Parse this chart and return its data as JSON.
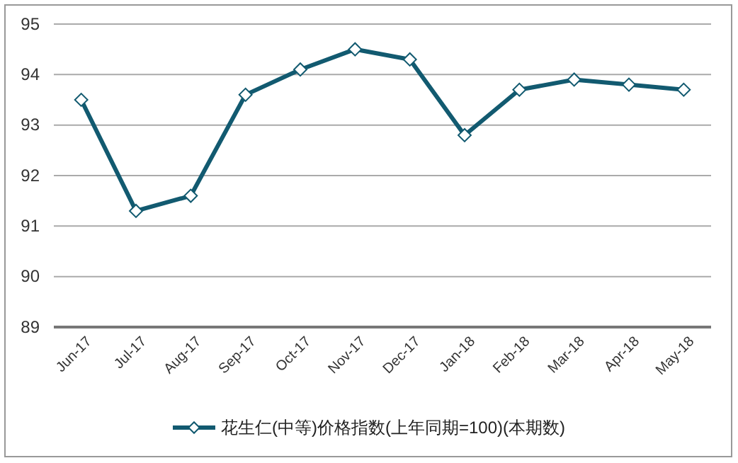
{
  "chart_data": {
    "type": "line",
    "categories": [
      "Jun-17",
      "Jul-17",
      "Aug-17",
      "Sep-17",
      "Oct-17",
      "Nov-17",
      "Dec-17",
      "Jan-18",
      "Feb-18",
      "Mar-18",
      "Apr-18",
      "May-18"
    ],
    "series": [
      {
        "name": "花生仁(中等)价格指数(上年同期=100)(本期数)",
        "color": "#125a70",
        "values": [
          93.5,
          91.3,
          91.6,
          93.6,
          94.1,
          94.5,
          94.3,
          92.8,
          93.7,
          93.9,
          93.8,
          93.7
        ]
      }
    ],
    "ylim": [
      89,
      95
    ],
    "yticks": [
      89,
      90,
      91,
      92,
      93,
      94,
      95
    ],
    "grid": "y",
    "legend": "bottom",
    "marker": "diamond",
    "line_style": "solid"
  }
}
